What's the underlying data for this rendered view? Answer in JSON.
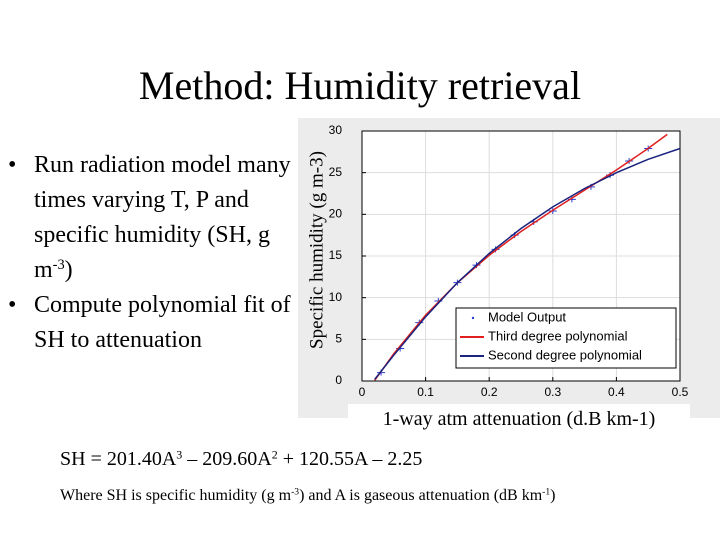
{
  "title": "Method: Humidity retrieval",
  "bullets": [
    [
      "Run radiation model many times varying T, P and specific humidity (SH, g m",
      "-3",
      ")"
    ],
    [
      "Compute polynomial fit of SH to attenuation"
    ]
  ],
  "equation": [
    "SH = 201.40A",
    "3",
    " – 209.60A",
    "2",
    " + 120.55A – 2.25"
  ],
  "footnote": [
    "Where SH is specific humidity (g m",
    "-3",
    ") and A is gaseous attenuation (dB km",
    "-1",
    ")"
  ],
  "chart_data": {
    "type": "line",
    "ylabel": "Specific humidity (g m-3)",
    "xlabel": "1-way atm attenuation (d.B km-1)",
    "xlim": [
      0,
      0.5
    ],
    "xticks": [
      0,
      0.1,
      0.2,
      0.3,
      0.4,
      0.5
    ],
    "ylim": [
      0,
      30
    ],
    "yticks": [
      0,
      5,
      10,
      15,
      20,
      25,
      30
    ],
    "grid": true,
    "legend": "lower right",
    "series": [
      {
        "name": "Model Output",
        "color": "#2a3fd0",
        "style": "marker",
        "x": [
          0.03,
          0.06,
          0.09,
          0.12,
          0.15,
          0.18,
          0.21,
          0.24,
          0.27,
          0.3,
          0.33,
          0.36,
          0.39,
          0.42,
          0.45
        ],
        "values": [
          1.0,
          3.9,
          7.0,
          9.6,
          11.8,
          13.9,
          15.8,
          17.5,
          19.1,
          20.4,
          21.8,
          23.3,
          24.7,
          26.4,
          27.9
        ]
      },
      {
        "name": "Third degree polynomial",
        "color": "#e02020",
        "style": "line",
        "x": [
          0.02,
          0.05,
          0.1,
          0.15,
          0.2,
          0.25,
          0.3,
          0.35,
          0.4,
          0.45,
          0.48
        ],
        "values": [
          0.08,
          3.28,
          7.91,
          11.79,
          15.09,
          17.94,
          20.49,
          22.9,
          25.32,
          27.91,
          29.59
        ]
      },
      {
        "name": "Second degree polynomial",
        "color": "#1a237e",
        "style": "line",
        "x": [
          0.02,
          0.05,
          0.1,
          0.15,
          0.2,
          0.25,
          0.3,
          0.35,
          0.4,
          0.45,
          0.5
        ],
        "values": [
          0.2,
          3.1,
          7.7,
          11.8,
          15.3,
          18.3,
          20.9,
          23.1,
          25.0,
          26.6,
          27.9
        ]
      }
    ]
  }
}
